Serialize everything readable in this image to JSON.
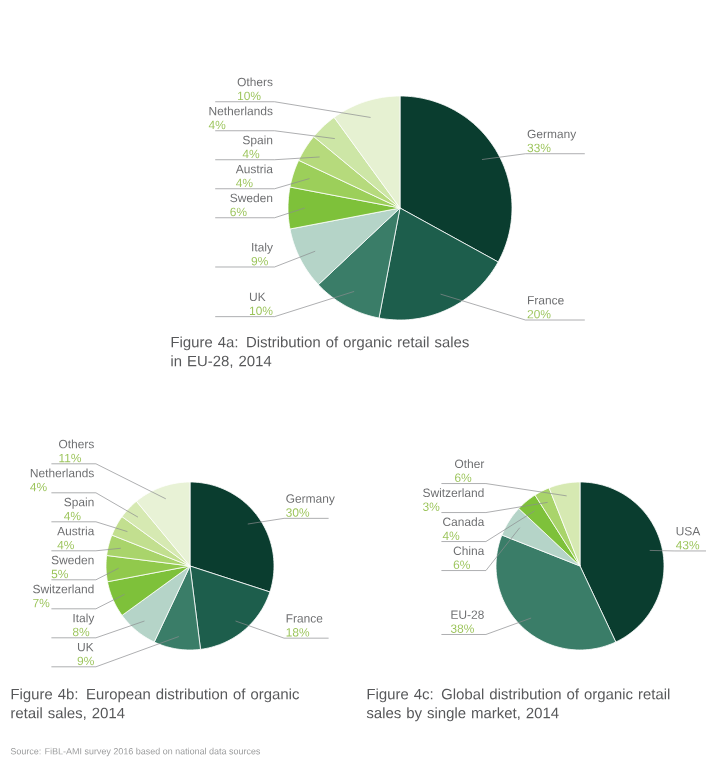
{
  "chart_data": [
    {
      "type": "pie",
      "title": "Figure 4a: Distribution of organic retail sales in EU-28, 2014",
      "categories": [
        "Germany",
        "France",
        "UK",
        "Italy",
        "Sweden",
        "Austria",
        "Spain",
        "Netherlands",
        "Others"
      ],
      "values": [
        33,
        20,
        10,
        9,
        6,
        4,
        4,
        4,
        10
      ],
      "value_labels": [
        "33%",
        "20%",
        "10%",
        "9%",
        "6%",
        "4%",
        "4%",
        "4%",
        "10%"
      ],
      "colors": [
        "#0a3d2f",
        "#1d5e4c",
        "#3a7d68",
        "#b5d4c8",
        "#7ec13a",
        "#9ccf5a",
        "#b6da7c",
        "#cde6a6",
        "#e6f1d2"
      ]
    },
    {
      "type": "pie",
      "title": "Figure 4b: European distribution of organic retail sales, 2014",
      "categories": [
        "Germany",
        "France",
        "UK",
        "Italy",
        "Switzerland",
        "Sweden",
        "Austria",
        "Spain",
        "Netherlands",
        "Others"
      ],
      "values": [
        30,
        18,
        9,
        8,
        7,
        5,
        4,
        4,
        4,
        11
      ],
      "value_labels": [
        "30%",
        "18%",
        "9%",
        "8%",
        "7%",
        "5%",
        "4%",
        "4%",
        "4%",
        "11%"
      ],
      "colors": [
        "#0a3d2f",
        "#1d5e4c",
        "#3a7d68",
        "#b5d4c8",
        "#7ec13a",
        "#91c94c",
        "#a9d46b",
        "#c2df8f",
        "#d6e9b2",
        "#e8f2d6"
      ],
      "annotations": [
        "Source: FiBL-AMI survey 2016 based on national data sources"
      ]
    },
    {
      "type": "pie",
      "title": "Figure 4c: Global distribution of organic retail sales by single market, 2014",
      "categories": [
        "USA",
        "EU-28",
        "China",
        "Canada",
        "Switzerland",
        "Other"
      ],
      "values": [
        43,
        38,
        6,
        4,
        3,
        6
      ],
      "value_labels": [
        "43%",
        "38%",
        "6%",
        "4%",
        "3%",
        "6%"
      ],
      "colors": [
        "#0a3d2f",
        "#3a7d68",
        "#b5d4c8",
        "#7ec13a",
        "#a9d46b",
        "#d6e9b2"
      ]
    }
  ]
}
